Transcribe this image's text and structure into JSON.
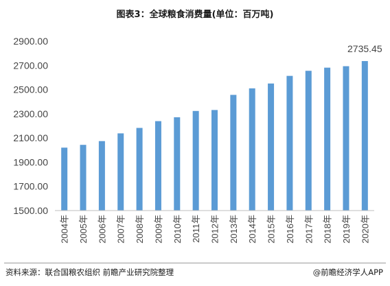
{
  "title": "图表3：全球粮食消费量(单位：百万吨)",
  "footer": {
    "source": "资料来源：联合国粮农组织 前瞻产业研究院整理",
    "credit": "@前瞻经济学人APP"
  },
  "chart_data": {
    "type": "bar",
    "title": "图表3：全球粮食消费量(单位：百万吨)",
    "xlabel": "",
    "ylabel": "",
    "categories": [
      "2004年",
      "2005年",
      "2006年",
      "2007年",
      "2008年",
      "2009年",
      "2010年",
      "2011年",
      "2012年",
      "2013年",
      "2014年",
      "2015年",
      "2016年",
      "2017年",
      "2018年",
      "2019年",
      "2020年"
    ],
    "values": [
      2020,
      2043,
      2074,
      2138,
      2183,
      2239,
      2271,
      2323,
      2331,
      2456,
      2510,
      2550,
      2613,
      2655,
      2681,
      2693,
      2735.45
    ],
    "yticks": [
      "1500.00",
      "1700.00",
      "1900.00",
      "2100.00",
      "2300.00",
      "2500.00",
      "2700.00",
      "2900.00"
    ],
    "ylim": [
      1500,
      2900
    ],
    "annotation": {
      "category": "2020年",
      "text": "2735.45"
    },
    "grid": false,
    "bar_color": "#5b9bd5"
  }
}
